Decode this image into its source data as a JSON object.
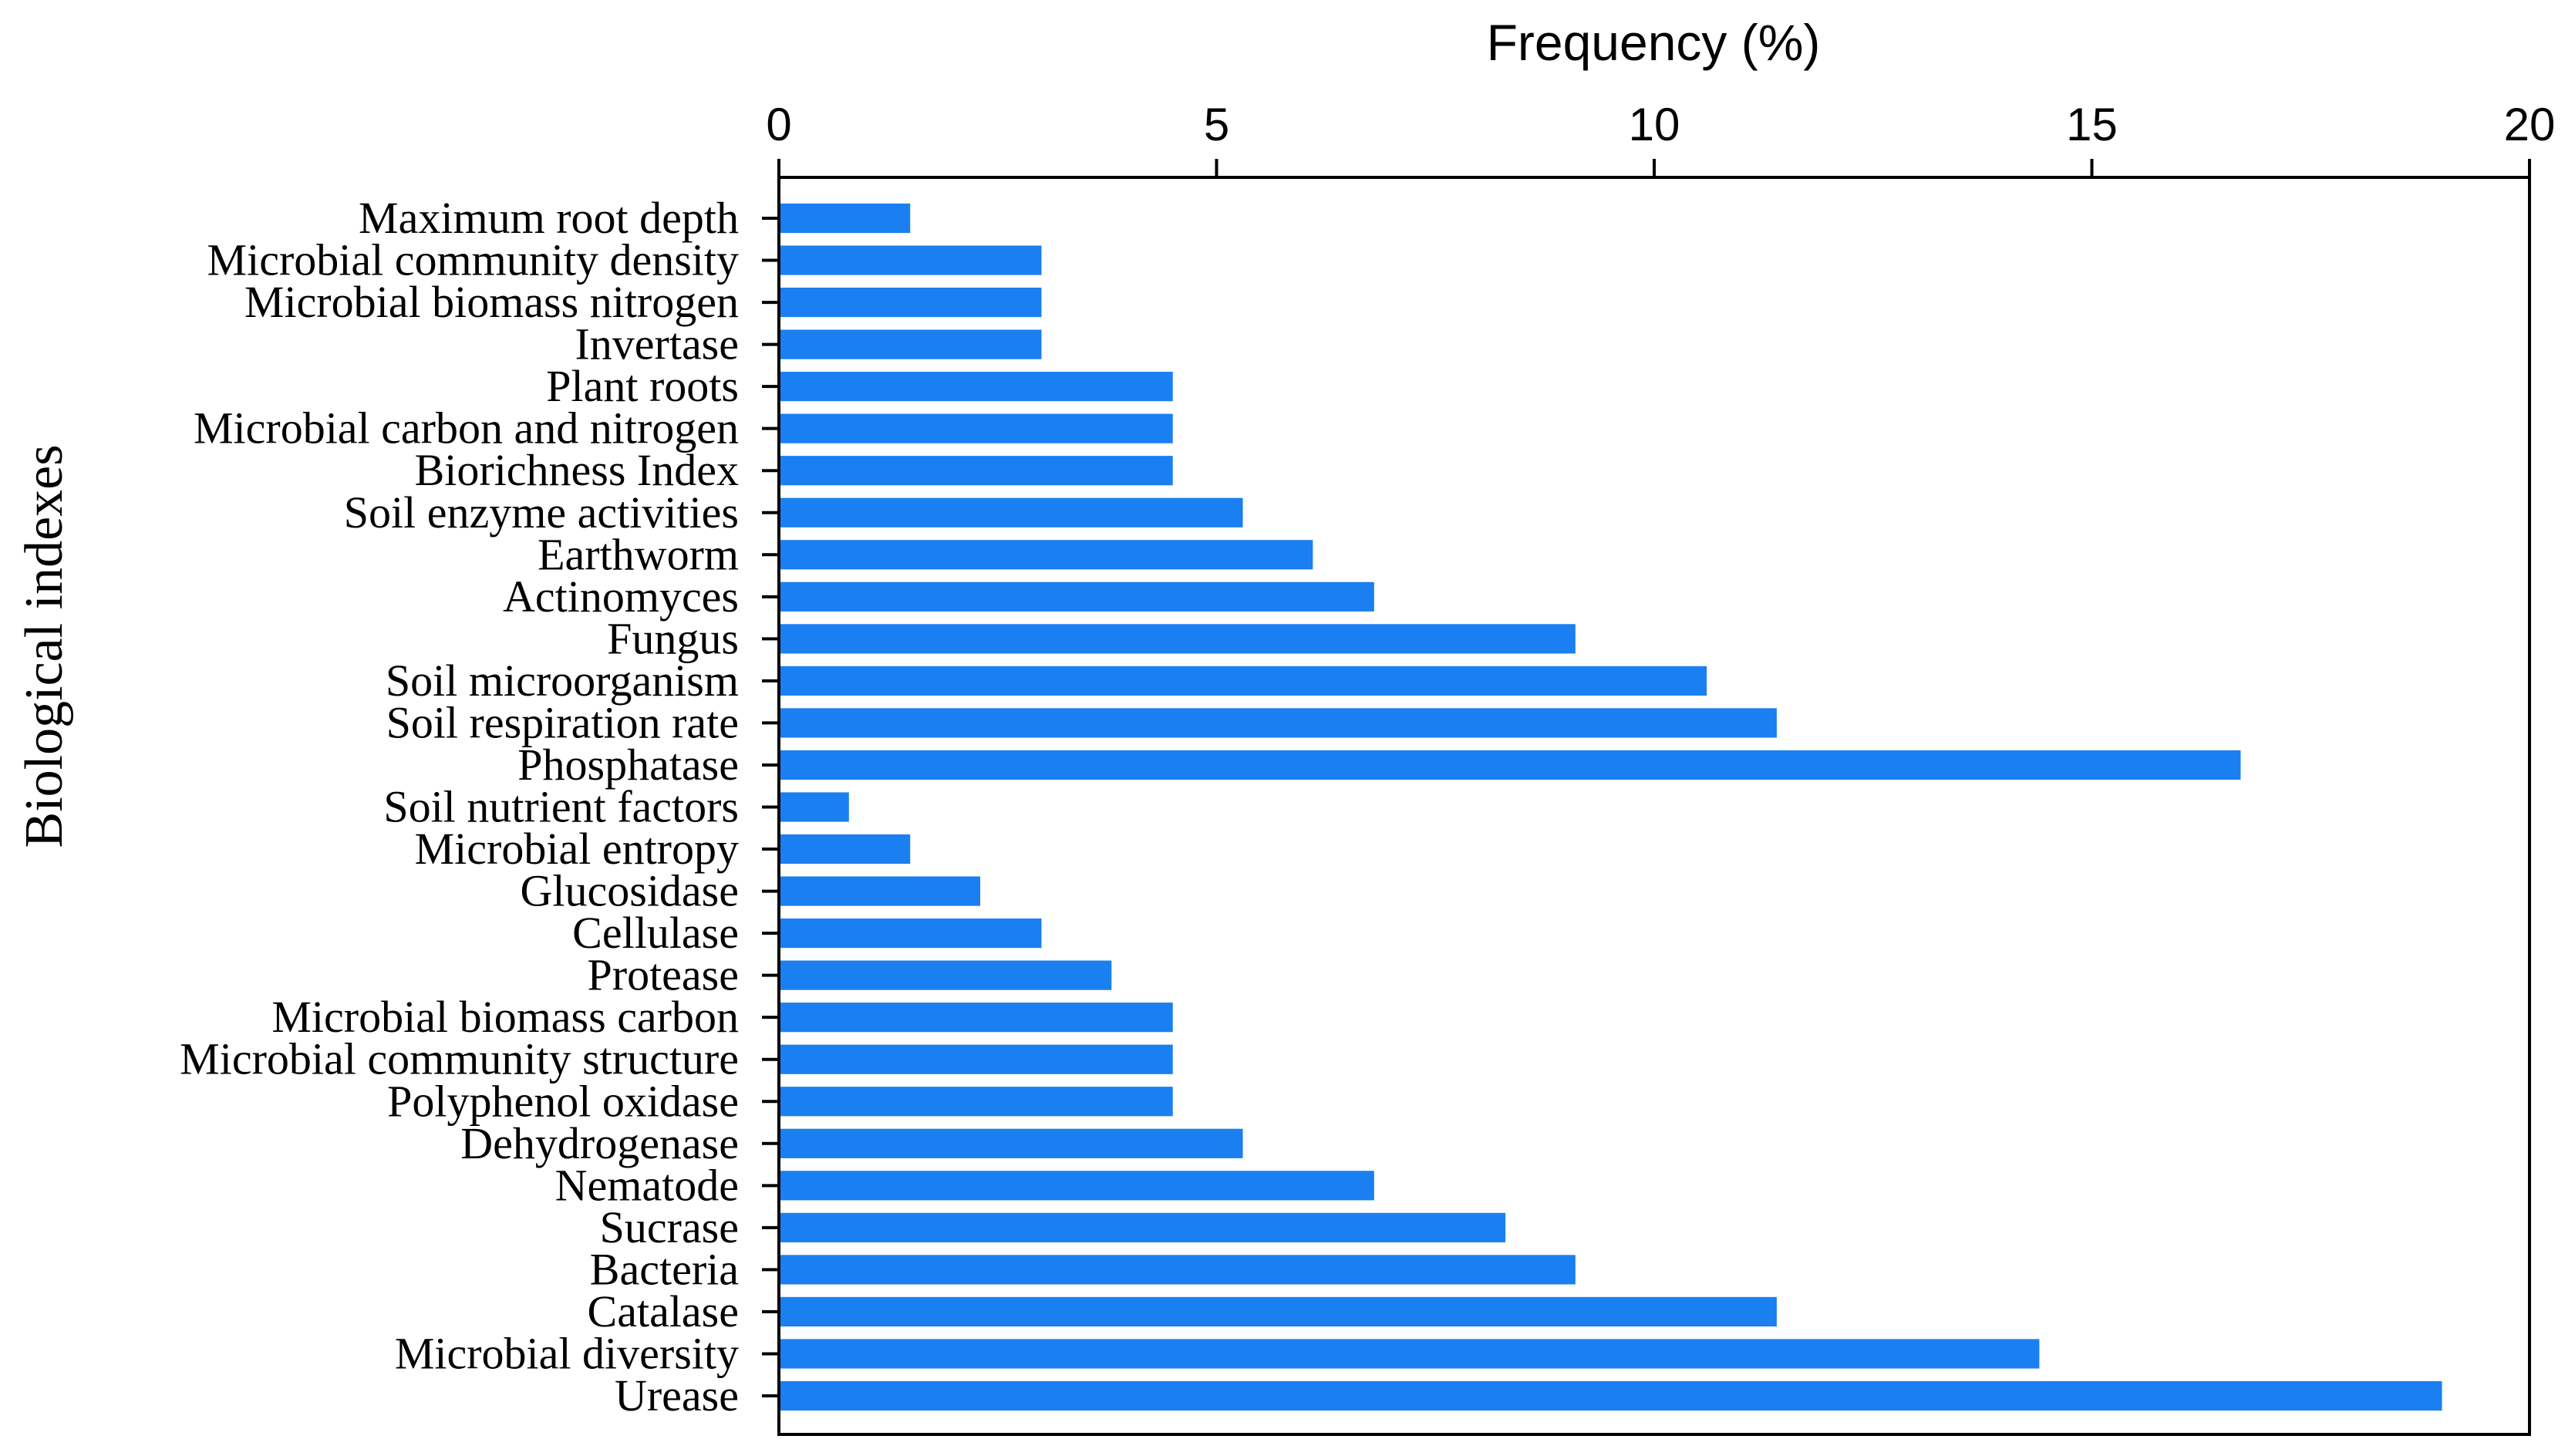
{
  "chart_data": {
    "type": "bar",
    "orientation": "horizontal",
    "title": "",
    "xlabel": "Frequency (%)",
    "ylabel": "Biological indexes",
    "xlim": [
      0,
      20
    ],
    "xticks": [
      0,
      5,
      10,
      15,
      20
    ],
    "bar_color": "#1a7ff0",
    "legend": "none",
    "categories": [
      "Maximum root depth",
      "Microbial community density",
      "Microbial biomass nitrogen",
      "Invertase",
      "Plant roots",
      "Microbial carbon and nitrogen",
      "Biorichness Index",
      "Soil enzyme activities",
      "Earthworm",
      "Actinomyces",
      "Fungus",
      "Soil microorganism",
      "Soil respiration rate",
      "Phosphatase",
      "Soil nutrient factors",
      "Microbial entropy",
      "Glucosidase",
      "Cellulase",
      "Protease",
      "Microbial biomass carbon",
      "Microbial community structure",
      "Polyphenol oxidase",
      "Dehydrogenase",
      "Nematode",
      "Sucrase",
      "Bacteria",
      "Catalase",
      "Microbial diversity",
      "Urease"
    ],
    "values": [
      1.5,
      3.0,
      3.0,
      3.0,
      4.5,
      4.5,
      4.5,
      5.3,
      6.1,
      6.8,
      9.1,
      10.6,
      11.4,
      16.7,
      0.8,
      1.5,
      2.3,
      3.0,
      3.8,
      4.5,
      4.5,
      4.5,
      5.3,
      6.8,
      8.3,
      9.1,
      11.4,
      14.4,
      19.0
    ]
  }
}
